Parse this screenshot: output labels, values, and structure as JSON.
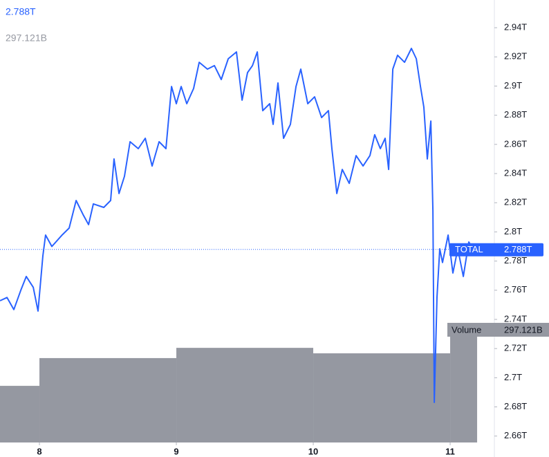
{
  "chart_data": {
    "type": "line",
    "xlim": [
      7.712,
      11.323
    ],
    "xticks": [
      8,
      9,
      10,
      11
    ],
    "ylim": [
      2.6556,
      2.959
    ],
    "yticks": [
      {
        "value": 2.66,
        "label": "2.66T"
      },
      {
        "value": 2.68,
        "label": "2.68T"
      },
      {
        "value": 2.7,
        "label": "2.7T"
      },
      {
        "value": 2.72,
        "label": "2.72T"
      },
      {
        "value": 2.74,
        "label": "2.74T"
      },
      {
        "value": 2.76,
        "label": "2.76T"
      },
      {
        "value": 2.78,
        "label": "2.78T"
      },
      {
        "value": 2.8,
        "label": "2.8T"
      },
      {
        "value": 2.82,
        "label": "2.82T"
      },
      {
        "value": 2.84,
        "label": "2.84T"
      },
      {
        "value": 2.86,
        "label": "2.86T"
      },
      {
        "value": 2.88,
        "label": "2.88T"
      },
      {
        "value": 2.9,
        "label": "2.9T"
      },
      {
        "value": 2.92,
        "label": "2.92T"
      },
      {
        "value": 2.94,
        "label": "2.94T"
      }
    ],
    "y2lim": [
      0,
      1211
    ],
    "series": [
      {
        "name": "TOTAL",
        "color": "#2962ff",
        "last_value_label": "2.788T",
        "x": [
          7.712,
          7.763,
          7.813,
          7.864,
          7.904,
          7.955,
          7.99,
          8.025,
          8.045,
          8.091,
          8.167,
          8.217,
          8.268,
          8.318,
          8.359,
          8.394,
          8.47,
          8.52,
          8.545,
          8.581,
          8.621,
          8.662,
          8.722,
          8.773,
          8.823,
          8.874,
          8.924,
          8.965,
          9.0,
          9.035,
          9.076,
          9.126,
          9.167,
          9.227,
          9.278,
          9.328,
          9.379,
          9.439,
          9.48,
          9.52,
          9.556,
          9.591,
          9.631,
          9.682,
          9.707,
          9.742,
          9.783,
          9.833,
          9.874,
          9.909,
          9.96,
          10.01,
          10.061,
          10.111,
          10.136,
          10.172,
          10.212,
          10.263,
          10.313,
          10.364,
          10.414,
          10.449,
          10.49,
          10.525,
          10.551,
          10.581,
          10.616,
          10.667,
          10.717,
          10.753,
          10.783,
          10.808,
          10.833,
          10.859,
          10.874,
          10.884,
          10.904,
          10.924,
          10.944,
          10.985,
          11.02,
          11.056,
          11.096,
          11.136,
          11.172
        ],
        "values": [
          2.7528,
          2.755,
          2.7467,
          2.76,
          2.7694,
          2.762,
          2.7457,
          2.7836,
          2.7978,
          2.79,
          2.798,
          2.8026,
          2.8215,
          2.812,
          2.805,
          2.8192,
          2.8168,
          2.8215,
          2.85,
          2.8263,
          2.8381,
          2.8618,
          2.8571,
          2.8642,
          2.8452,
          2.8618,
          2.8571,
          2.8997,
          2.8879,
          2.8997,
          2.8879,
          2.8983,
          2.9163,
          2.9116,
          2.914,
          2.9045,
          2.9187,
          2.9234,
          2.8903,
          2.9092,
          2.914,
          2.9234,
          2.8831,
          2.8879,
          2.8737,
          2.9021,
          2.8642,
          2.8737,
          2.8997,
          2.9116,
          2.8879,
          2.8926,
          2.8784,
          2.8831,
          2.8571,
          2.8263,
          2.8428,
          2.8333,
          2.8523,
          2.8452,
          2.8523,
          2.8666,
          2.8571,
          2.8642,
          2.8428,
          2.9116,
          2.9211,
          2.9163,
          2.9258,
          2.9187,
          2.8997,
          2.8855,
          2.85,
          2.876,
          2.8144,
          2.6831,
          2.7552,
          2.7884,
          2.779,
          2.7978,
          2.7718,
          2.7884,
          2.7694,
          2.7931,
          2.788
        ]
      },
      {
        "name": "Volume",
        "color": "#9598a1",
        "axis": "y2",
        "last_value_label": "297.121B",
        "bins": [
          7.712,
          8,
          9,
          10,
          11,
          11.197
        ],
        "values": [
          155,
          231,
          259,
          244,
          297.121
        ]
      }
    ]
  }
}
